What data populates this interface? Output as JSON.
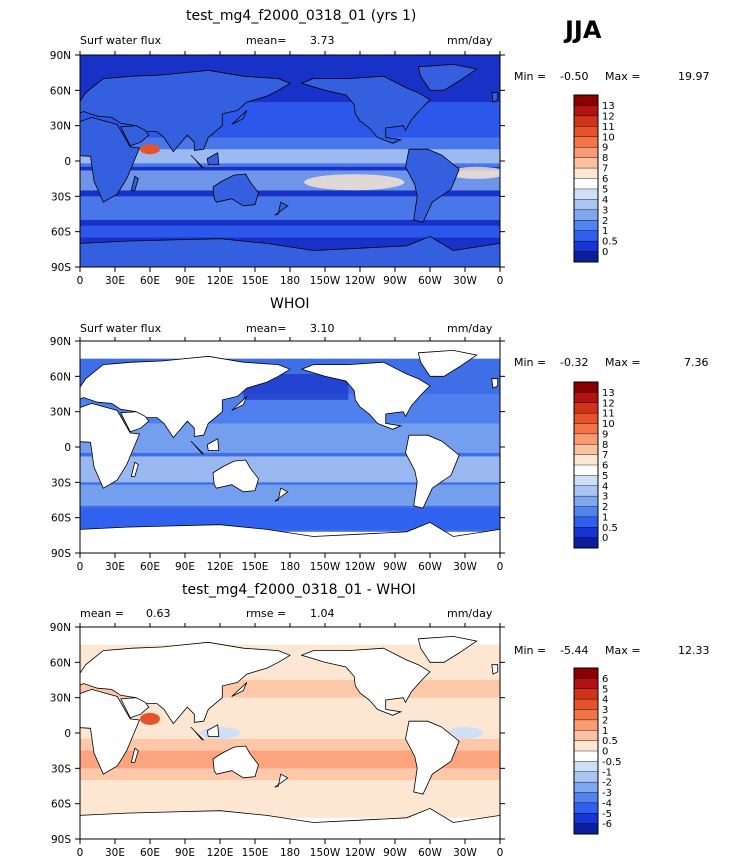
{
  "season": "JJA",
  "x_ticks": [
    "0",
    "30E",
    "60E",
    "90E",
    "120E",
    "150E",
    "180",
    "150W",
    "120W",
    "90W",
    "60W",
    "30W",
    "0"
  ],
  "y_ticks": [
    "90N",
    "60N",
    "30N",
    "0",
    "30S",
    "60S",
    "90S"
  ],
  "panels": [
    {
      "title": "test_mg4_f2000_0318_01 (yrs 1)",
      "left_label": "Surf water flux",
      "stat_label": "mean=",
      "stat_value": "3.73",
      "units": "mm/day",
      "min_label": "Min =",
      "min_value": "-0.50",
      "max_label": "Max =",
      "max_value": "19.97",
      "colorbar_labels": [
        "13",
        "12",
        "11",
        "10",
        "9",
        "8",
        "7",
        "6",
        "5",
        "4",
        "3",
        "2",
        "1",
        "0.5",
        "0"
      ],
      "colorbar_colors": [
        "#8b0000",
        "#b21212",
        "#cf3318",
        "#e5522c",
        "#f4744a",
        "#fb9b73",
        "#fcc1a0",
        "#fde7d2",
        "#ffffff",
        "#cfe0f6",
        "#a9c6f2",
        "#7ea7ef",
        "#5284ee",
        "#2f5ff0",
        "#1834d6",
        "#0b1f9c"
      ]
    },
    {
      "title": "WHOI",
      "left_label": "Surf water flux",
      "stat_label": "mean=",
      "stat_value": "3.10",
      "units": "mm/day",
      "min_label": "Min =",
      "min_value": "-0.32",
      "max_label": "Max =",
      "max_value": "7.36",
      "colorbar_labels": [
        "13",
        "12",
        "11",
        "10",
        "9",
        "8",
        "7",
        "6",
        "5",
        "4",
        "3",
        "2",
        "1",
        "0.5",
        "0"
      ],
      "colorbar_colors": [
        "#8b0000",
        "#b21212",
        "#cf3318",
        "#e5522c",
        "#f4744a",
        "#fb9b73",
        "#fcc1a0",
        "#fde7d2",
        "#ffffff",
        "#cfe0f6",
        "#a9c6f2",
        "#7ea7ef",
        "#5284ee",
        "#2f5ff0",
        "#1834d6",
        "#0b1f9c"
      ]
    },
    {
      "title": "test_mg4_f2000_0318_01 - WHOI",
      "left_label": "mean =",
      "left_value": "0.63",
      "stat_label": "rmse =",
      "stat_value": "1.04",
      "units": "mm/day",
      "min_label": "Min =",
      "min_value": "-5.44",
      "max_label": "Max =",
      "max_value": "12.33",
      "colorbar_labels": [
        "6",
        "5",
        "4",
        "3",
        "2",
        "1",
        "0.5",
        "0",
        "-0.5",
        "-1",
        "-2",
        "-3",
        "-4",
        "-5",
        "-6"
      ],
      "colorbar_colors": [
        "#8b0000",
        "#b21212",
        "#cf3318",
        "#e5522c",
        "#f4744a",
        "#fb9b73",
        "#fcc1a0",
        "#fde7d2",
        "#ffffff",
        "#cfe0f6",
        "#a9c6f2",
        "#7ea7ef",
        "#5284ee",
        "#2f5ff0",
        "#1834d6",
        "#0b1f9c"
      ]
    }
  ],
  "colors": {
    "deep_blue": "#1832c8",
    "mid_blue": "#3f6fe6",
    "light_blue": "#8fb4f0",
    "ocean_diff": "#f7c0a4",
    "land_outline": "#000000"
  }
}
